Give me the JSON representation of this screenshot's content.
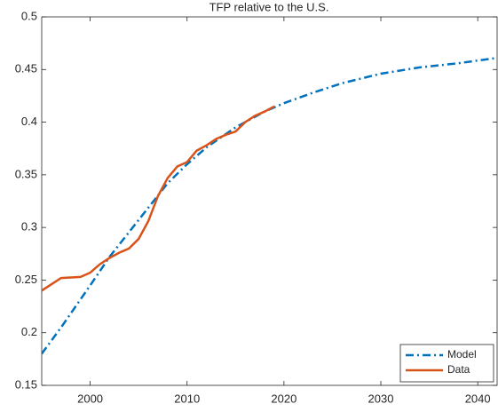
{
  "chart_data": {
    "type": "line",
    "title": "TFP relative to the U.S.",
    "series": [
      {
        "name": "Model",
        "color": "#0072BD",
        "dash": "dashdot",
        "x": [
          1995,
          1997,
          2000,
          2002,
          2005,
          2008,
          2010,
          2012,
          2015,
          2018,
          2020,
          2023,
          2026,
          2030,
          2034,
          2038,
          2042
        ],
        "values": [
          0.18,
          0.205,
          0.245,
          0.272,
          0.307,
          0.342,
          0.36,
          0.376,
          0.395,
          0.41,
          0.418,
          0.428,
          0.437,
          0.446,
          0.452,
          0.456,
          0.461
        ]
      },
      {
        "name": "Data",
        "color": "#D95319",
        "dash": "solid",
        "x": [
          1995,
          1997,
          1999,
          2000,
          2001,
          2002,
          2003,
          2004,
          2005,
          2006,
          2007,
          2008,
          2009,
          2010,
          2011,
          2012,
          2013,
          2014,
          2015,
          2016,
          2017,
          2018,
          2019
        ],
        "values": [
          0.24,
          0.252,
          0.253,
          0.257,
          0.265,
          0.271,
          0.276,
          0.28,
          0.289,
          0.306,
          0.33,
          0.347,
          0.358,
          0.362,
          0.373,
          0.378,
          0.384,
          0.388,
          0.391,
          0.4,
          0.406,
          0.41,
          0.415
        ]
      }
    ],
    "xlim": [
      1995,
      2042
    ],
    "xticks": [
      2000,
      2010,
      2020,
      2030,
      2040
    ],
    "ylim": [
      0.15,
      0.5
    ],
    "yticks": [
      0.15,
      0.2,
      0.25,
      0.3,
      0.35,
      0.4,
      0.45,
      0.5
    ],
    "legend": "lower-right"
  }
}
